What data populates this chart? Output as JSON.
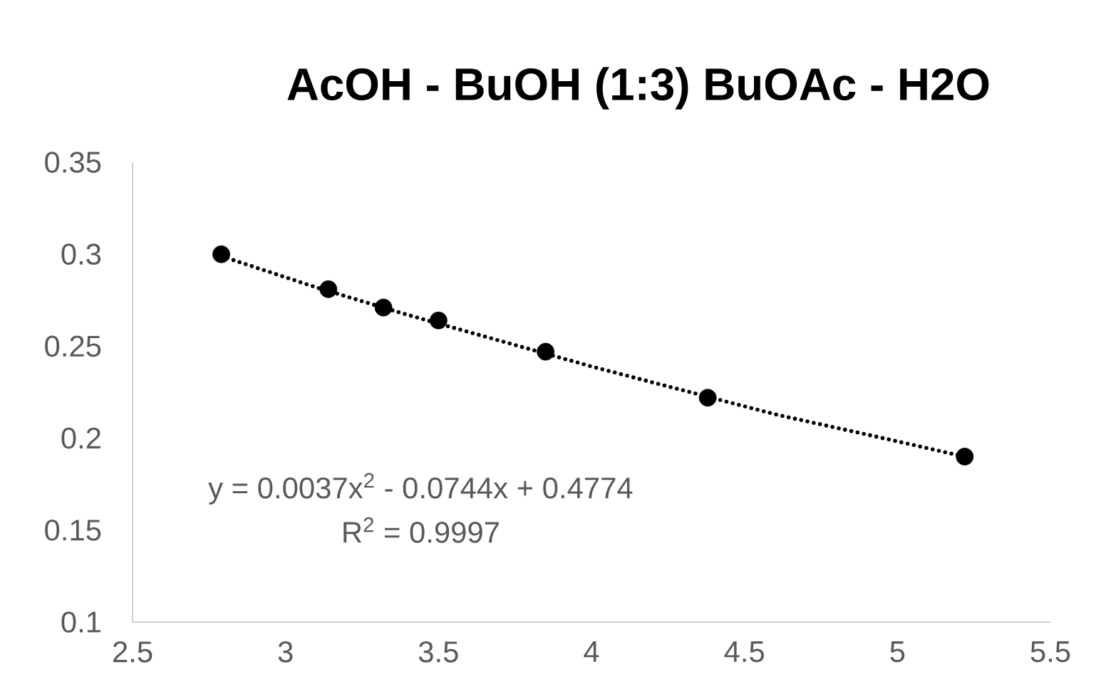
{
  "chart_data": {
    "type": "scatter",
    "title": "AcOH - BuOH (1:3) BuOAc - H2O",
    "annotations": [
      "y = 0.0037x$^{2}$ - 0.0744x + 0.4774",
      "R$^{2}$ = 0.9997"
    ],
    "series": [
      {
        "color": "#000000",
        "marker": "circle",
        "x": [
          2.79,
          3.14,
          3.32,
          3.5,
          3.85,
          4.38,
          5.22
        ],
        "values": [
          0.3,
          0.281,
          0.271,
          0.264,
          0.247,
          0.222,
          0.19
        ]
      },
      {
        "type": "line",
        "color": "#000000",
        "marker": "none",
        "line_style": "dotted",
        "x": [
          2.79,
          3.1,
          3.4,
          3.7,
          4.0,
          4.3,
          4.6,
          4.9,
          5.22
        ],
        "values": [
          0.299,
          0.282,
          0.267,
          0.253,
          0.239,
          0.226,
          0.213,
          0.202,
          0.19
        ]
      }
    ],
    "xlim": [
      2.5,
      5.5
    ],
    "xticks": [
      2.5,
      3,
      3.5,
      4,
      4.5,
      5,
      5.5
    ],
    "ylim": [
      0.1,
      0.35
    ],
    "yticks": [
      0.1,
      0.15,
      0.2,
      0.25,
      0.3,
      0.35
    ],
    "grid": false
  }
}
